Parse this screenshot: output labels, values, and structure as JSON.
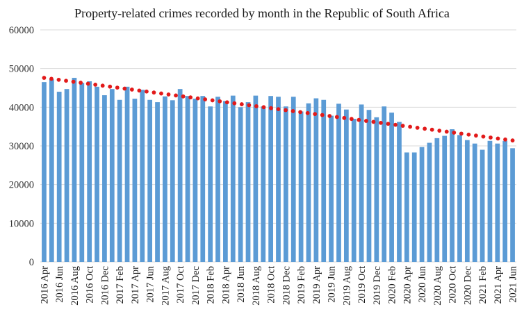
{
  "chart_data": {
    "type": "bar",
    "title": "Property-related crimes recorded by month in the Republic of South Africa",
    "xlabel": "",
    "ylabel": "",
    "ylim": [
      0,
      60000
    ],
    "yticks": [
      0,
      10000,
      20000,
      30000,
      40000,
      50000,
      60000
    ],
    "ytick_labels": [
      "0",
      "10000",
      "20000",
      "30000",
      "40000",
      "50000",
      "60000"
    ],
    "grid": true,
    "legend": "none",
    "categories": [
      "2016 Apr",
      "2016 May",
      "2016 Jun",
      "2016 Jul",
      "2016 Aug",
      "2016 Sep",
      "2016 Oct",
      "2016 Nov",
      "2016 Dec",
      "2017 Jan",
      "2017 Feb",
      "2017 Mar",
      "2017 Apr",
      "2017 May",
      "2017 Jun",
      "2017 Jul",
      "2017 Aug",
      "2017 Sep",
      "2017 Oct",
      "2017 Nov",
      "2017 Dec",
      "2018 Jan",
      "2018 Feb",
      "2018 Mar",
      "2018 Apr",
      "2018 May",
      "2018 Jun",
      "2018 Jul",
      "2018 Aug",
      "2018 Sep",
      "2018 Oct",
      "2018 Nov",
      "2018 Dec",
      "2019 Jan",
      "2019 Feb",
      "2019 Mar",
      "2019 Apr",
      "2019 May",
      "2019 Jun",
      "2019 Jul",
      "2019 Aug",
      "2019 Sep",
      "2019 Oct",
      "2019 Nov",
      "2019 Dec",
      "2020 Jan",
      "2020 Feb",
      "2020 Mar",
      "2020 Apr",
      "2020 May",
      "2020 Jun",
      "2020 Jul",
      "2020 Aug",
      "2020 Sep",
      "2020 Oct",
      "2020 Nov",
      "2020 Dec",
      "2021 Jan",
      "2021 Feb",
      "2021 Mar",
      "2021 Apr",
      "2021 May",
      "2021 Jun"
    ],
    "visible_tick_labels": [
      "2016 Apr",
      "2016 Jun",
      "2016 Aug",
      "2016 Oct",
      "2016 Dec",
      "2017 Feb",
      "2017 Apr",
      "2017 Jun",
      "2017 Aug",
      "2017 Oct",
      "2017 Dec",
      "2018 Feb",
      "2018 Apr",
      "2018 Jun",
      "2018 Aug",
      "2018 Oct",
      "2018 Dec",
      "2019 Feb",
      "2019 Apr",
      "2019 Jun",
      "2019 Aug",
      "2019 Oct",
      "2019 Dec",
      "2020 Feb",
      "2020 Apr",
      "2020 Jun",
      "2020 Aug",
      "2020 Oct",
      "2020 Dec",
      "2021 Feb",
      "2021 Apr",
      "2021 Jun"
    ],
    "series": [
      {
        "name": "Property-related crimes",
        "type": "bar",
        "color": "#5b9bd5",
        "values": [
          46500,
          47200,
          44000,
          44700,
          47600,
          46300,
          46700,
          45300,
          43100,
          44700,
          41900,
          45300,
          42200,
          44500,
          41900,
          41300,
          42800,
          41800,
          44700,
          42900,
          42200,
          42900,
          40200,
          42700,
          41600,
          43000,
          40000,
          41300,
          43000,
          40200,
          42900,
          42700,
          40200,
          42700,
          38900,
          41000,
          42300,
          41900,
          37800,
          40900,
          39400,
          37000,
          40700,
          39300,
          37400,
          40200,
          38600,
          36200,
          28300,
          28300,
          29700,
          30800,
          32000,
          32600,
          34300,
          32800,
          31500,
          30600,
          29000,
          31300,
          30600,
          31300,
          29400
        ]
      },
      {
        "name": "Linear trend",
        "type": "dotted-line",
        "color": "#e21a1a",
        "start": 47600,
        "end": 31400
      }
    ]
  }
}
